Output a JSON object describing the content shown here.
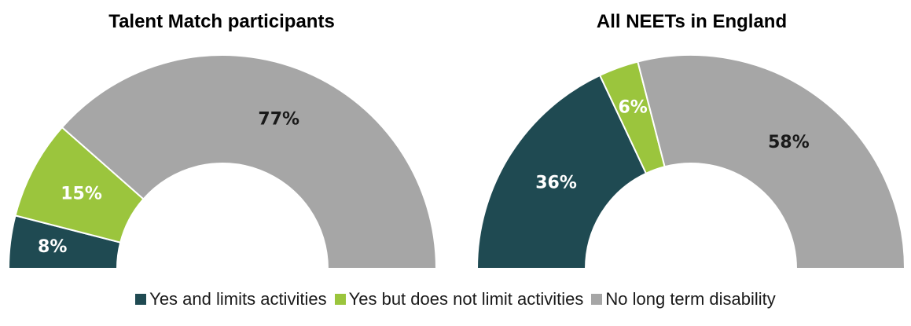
{
  "chart_data": [
    {
      "type": "pie",
      "subtype": "half-donut",
      "title": "Talent Match participants",
      "categories": [
        "Yes and limits activities",
        "Yes but does not limit activities",
        "No long term disability"
      ],
      "values": [
        8,
        15,
        77
      ],
      "labels": [
        "8%",
        "15%",
        "77%"
      ],
      "colors": [
        "#1f4a52",
        "#9bc53d",
        "#a6a6a6"
      ],
      "label_colors": [
        "#ffffff",
        "#ffffff",
        "#1a1a1a"
      ]
    },
    {
      "type": "pie",
      "subtype": "half-donut",
      "title": "All NEETs in England",
      "categories": [
        "Yes and limits activities",
        "Yes but does not limit activities",
        "No long term disability"
      ],
      "values": [
        36,
        6,
        58
      ],
      "labels": [
        "36%",
        "6%",
        "58%"
      ],
      "colors": [
        "#1f4a52",
        "#9bc53d",
        "#a6a6a6"
      ],
      "label_colors": [
        "#ffffff",
        "#ffffff",
        "#1a1a1a"
      ]
    }
  ],
  "legend": {
    "position": "bottom",
    "items": [
      {
        "label": "Yes and limits activities",
        "color": "#1f4a52"
      },
      {
        "label": "Yes but does not limit activities",
        "color": "#9bc53d"
      },
      {
        "label": "No long term disability",
        "color": "#a6a6a6"
      }
    ]
  }
}
